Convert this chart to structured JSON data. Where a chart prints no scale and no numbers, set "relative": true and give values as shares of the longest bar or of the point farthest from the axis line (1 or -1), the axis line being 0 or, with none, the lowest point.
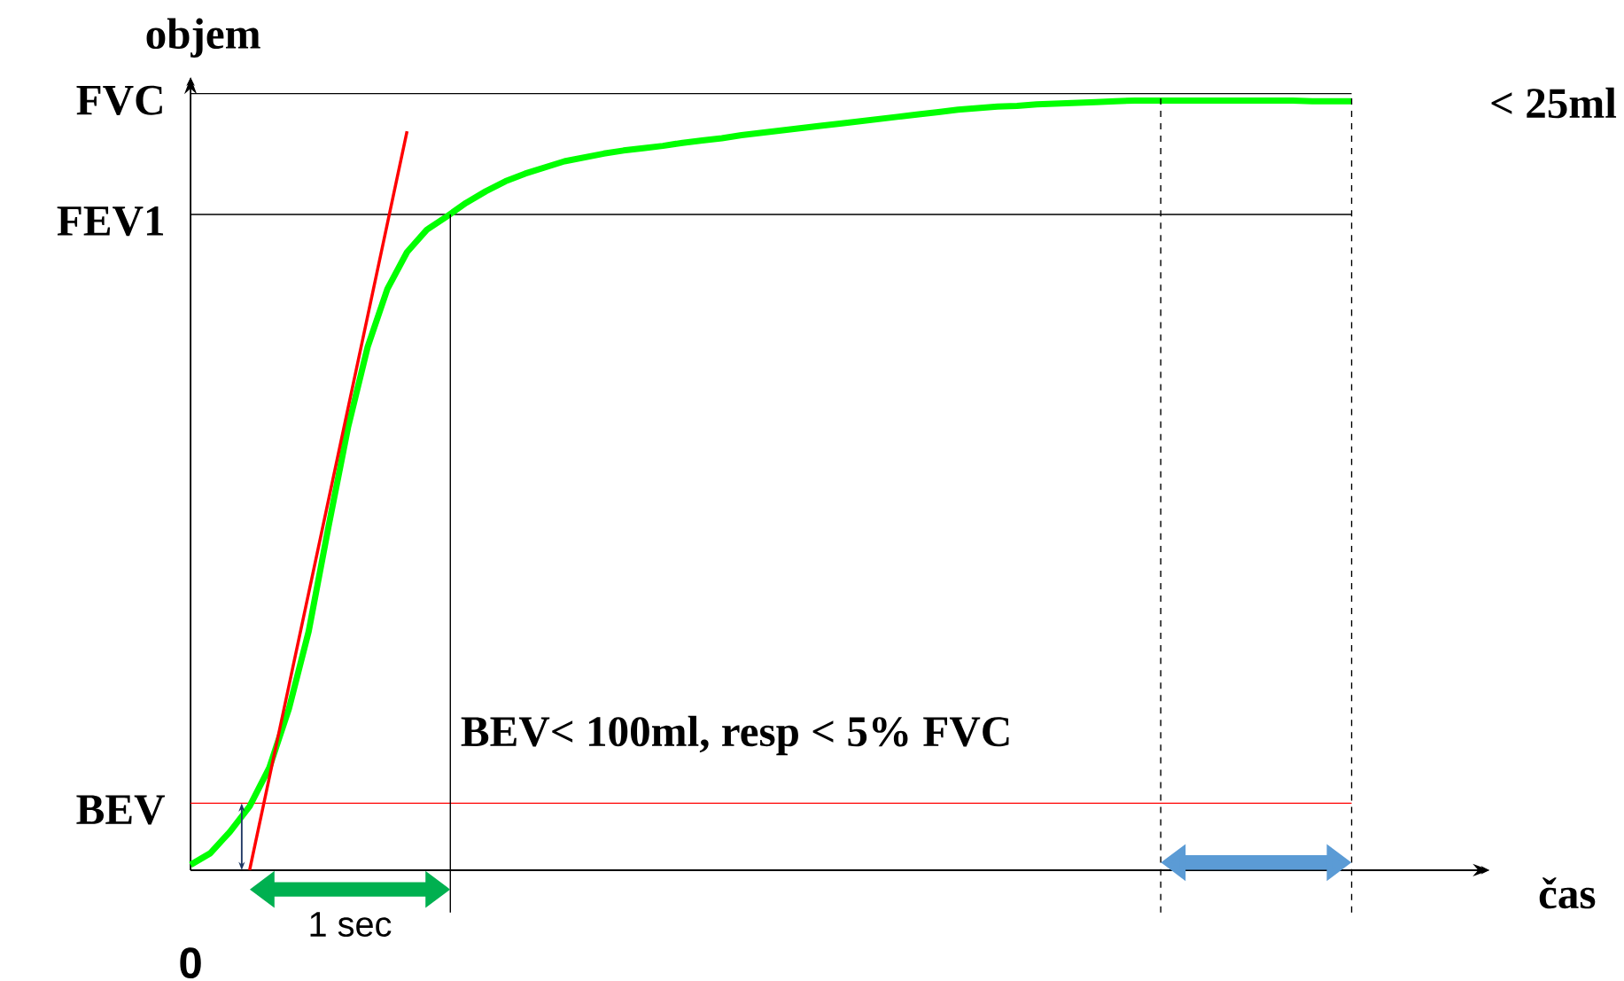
{
  "chart_data": {
    "type": "line",
    "relative": true,
    "xlabel": "čas",
    "ylabel": "objem",
    "marker": "none",
    "categories": [
      null,
      null,
      null,
      null,
      null,
      null,
      null,
      null,
      null,
      null,
      null,
      null,
      null,
      null,
      null,
      null,
      null,
      null,
      null,
      null,
      null,
      null,
      null,
      null,
      null,
      null,
      null,
      null,
      null,
      null,
      null,
      null,
      null,
      null,
      null,
      null,
      null,
      null,
      null,
      null,
      null,
      null,
      null,
      null,
      null,
      null,
      null,
      null,
      null,
      null,
      null,
      null,
      null,
      null,
      null,
      null,
      null,
      null,
      null,
      null
    ],
    "series": [
      {
        "color": "#00ff00",
        "values": [
          0.007,
          0.022,
          0.05,
          0.083,
          0.133,
          0.21,
          0.31,
          0.445,
          0.575,
          0.68,
          0.755,
          0.803,
          0.832,
          0.849,
          0.867,
          0.882,
          0.895,
          0.905,
          0.913,
          0.921,
          0.926,
          0.931,
          0.935,
          0.938,
          0.941,
          0.945,
          0.948,
          0.951,
          0.955,
          0.958,
          0.961,
          0.964,
          0.967,
          0.97,
          0.973,
          0.976,
          0.979,
          0.982,
          0.985,
          0.988,
          0.99,
          0.992,
          0.993,
          0.995,
          0.996,
          0.997,
          0.998,
          0.999,
          1,
          1,
          1,
          1,
          1,
          1,
          1,
          1,
          1,
          0.999,
          0.999,
          0.999
        ]
      },
      {
        "color": "#ff0000",
        "values": [
          null,
          null,
          null,
          0,
          0.12,
          0.24,
          0.36,
          0.48,
          0.6,
          0.72,
          0.84,
          0.96,
          null,
          null,
          null,
          null,
          null,
          null,
          null,
          null,
          null,
          null,
          null,
          null,
          null,
          null,
          null,
          null,
          null,
          null,
          null,
          null,
          null,
          null,
          null,
          null,
          null,
          null,
          null,
          null,
          null,
          null,
          null,
          null,
          null,
          null,
          null,
          null,
          null,
          null,
          null,
          null,
          null,
          null,
          null,
          null,
          null,
          null,
          null,
          null
        ]
      }
    ],
    "ref_lines": [
      {
        "axis": "y",
        "value": 1.009,
        "label": "FVC",
        "color": "#000000"
      },
      {
        "axis": "y",
        "value": 0.852,
        "label": "FEV1",
        "color": "#000000"
      },
      {
        "axis": "y",
        "value": 0.087,
        "label": "BEV",
        "color": "#ff0000"
      }
    ],
    "annotations": [
      "BEV< 100ml, resp < 5% FVC",
      "1 sec",
      "< 25ml",
      "0"
    ]
  }
}
